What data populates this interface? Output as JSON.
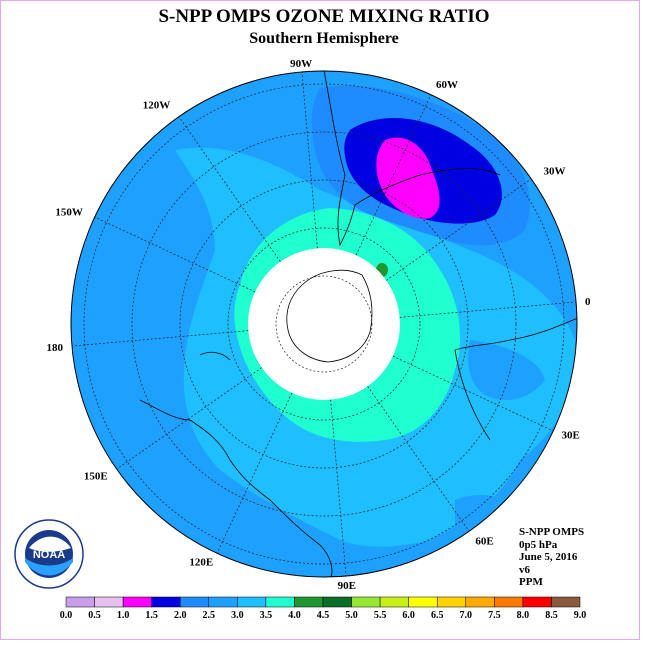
{
  "title": "S-NPP OMPS OZONE MIXING RATIO",
  "subtitle": "Southern Hemisphere",
  "info": {
    "line1": "S-NPP OMPS",
    "line2": "0p5 hPa",
    "line3": "June 5, 2016",
    "line4": "v6",
    "line5": "PPM"
  },
  "longitude_labels": [
    "90W",
    "60W",
    "30W",
    "0",
    "30E",
    "60E",
    "90E",
    "120E",
    "150E",
    "180",
    "150W",
    "120W"
  ],
  "logo": {
    "text": "NOAA",
    "ring_text": "NATIONAL OCEANIC AND ATMOSPHERIC ADMINISTRATION · U.S. DEPARTMENT OF COMMERCE"
  },
  "colorbar": {
    "ticks": [
      "0.0",
      "0.5",
      "1.0",
      "1.5",
      "2.0",
      "2.5",
      "3.0",
      "3.5",
      "4.0",
      "4.5",
      "5.0",
      "5.5",
      "6.0",
      "6.5",
      "7.0",
      "7.5",
      "8.0",
      "8.5",
      "9.0"
    ],
    "colors": [
      "#c8a0e8",
      "#e6c0f0",
      "#ff00ff",
      "#0000e0",
      "#1e8cff",
      "#1ea0ff",
      "#1ebeff",
      "#20ffd0",
      "#1e9632",
      "#0a6e28",
      "#96e632",
      "#c8f014",
      "#ffff00",
      "#ffd200",
      "#ffaa00",
      "#ff7800",
      "#ff0000",
      "#8b5a3c"
    ]
  }
}
